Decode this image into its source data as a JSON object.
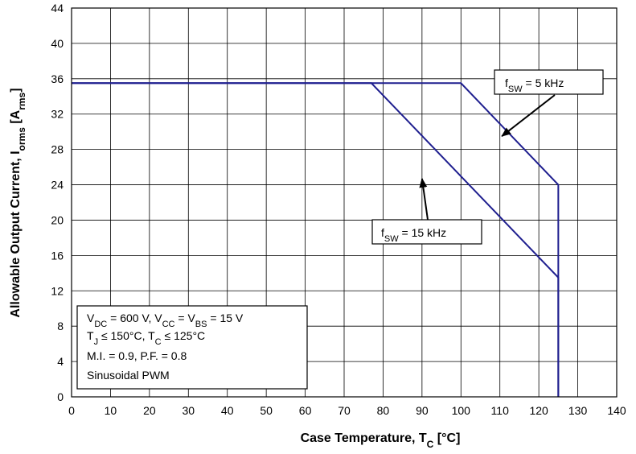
{
  "chart_data": {
    "type": "line",
    "xlabel": {
      "main": "Case Temperature, T",
      "sub": "C",
      "unit": " [°C]"
    },
    "ylabel": {
      "main": "Allowable Output Current, I",
      "sub": "orms",
      "unit_open": " [A",
      "unit_sub": "rms",
      "unit_close": "]"
    },
    "xlim": [
      0,
      140
    ],
    "ylim": [
      0,
      44
    ],
    "xticks": [
      0,
      10,
      20,
      30,
      40,
      50,
      60,
      70,
      80,
      90,
      100,
      110,
      120,
      130,
      140
    ],
    "yticks": [
      0,
      4,
      8,
      12,
      16,
      20,
      24,
      28,
      32,
      36,
      40,
      44
    ],
    "grid": true,
    "series": [
      {
        "name": "fSW = 5 kHz",
        "color": "#1f1f8f",
        "x": [
          0,
          100,
          125,
          125
        ],
        "y": [
          35.5,
          35.5,
          24,
          0
        ]
      },
      {
        "name": "fSW = 15 kHz",
        "color": "#1f1f8f",
        "x": [
          0,
          77,
          125,
          125
        ],
        "y": [
          35.5,
          35.5,
          13.5,
          0
        ]
      }
    ],
    "annotations": [
      {
        "id": "ann5",
        "prefix": "f",
        "sub": "SW",
        "suffix": " = 5 kHz",
        "target": [
          110.5,
          29.5
        ]
      },
      {
        "id": "ann15",
        "prefix": "f",
        "sub": "SW",
        "suffix": " = 15 kHz",
        "target": [
          90,
          24.7
        ]
      }
    ],
    "conditions": {
      "line1": {
        "a": "V",
        "a_sub": "DC",
        "b": " = 600 V, V",
        "b_sub": "CC",
        "c": " = V",
        "c_sub": "BS",
        "d": " = 15 V"
      },
      "line2": {
        "a": "T",
        "a_sub": "J",
        "b": " ≤ 150°C, T",
        "b_sub": "C",
        "c": " ≤ 125°C"
      },
      "line3": "M.I. = 0.9, P.F. = 0.8",
      "line4": "Sinusoidal PWM"
    }
  }
}
